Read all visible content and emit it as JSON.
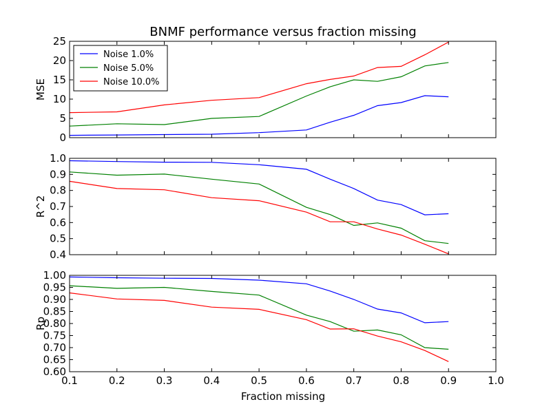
{
  "chart_data": {
    "type": "line",
    "title": "BNMF performance versus fraction missing",
    "xlabel": "Fraction missing",
    "xlim": [
      0.1,
      1.0
    ],
    "xticks": [
      "0.1",
      "0.2",
      "0.3",
      "0.4",
      "0.5",
      "0.6",
      "0.7",
      "0.8",
      "0.9",
      "1.0"
    ],
    "x": [
      0.1,
      0.2,
      0.3,
      0.4,
      0.5,
      0.6,
      0.65,
      0.7,
      0.75,
      0.8,
      0.85,
      0.9
    ],
    "legend": {
      "placement": "top-left",
      "subplot": 0
    },
    "series_colors": [
      "#0000ff",
      "#008000",
      "#ff0000"
    ],
    "series_names": [
      "Noise 1.0%",
      "Noise 5.0%",
      "Noise 10.0%"
    ],
    "subplots": [
      {
        "ylabel": "MSE",
        "ylim": [
          0,
          25
        ],
        "yticks": [
          "0",
          "5",
          "10",
          "15",
          "20",
          "25"
        ],
        "show_xtick_labels": false,
        "series": [
          {
            "name": "Noise 1.0%",
            "values": [
              0.6,
              0.7,
              0.8,
              0.9,
              1.3,
              2.0,
              4.0,
              5.8,
              8.3,
              9.1,
              10.9,
              10.6
            ]
          },
          {
            "name": "Noise 5.0%",
            "values": [
              3.0,
              3.6,
              3.4,
              5.0,
              5.5,
              10.8,
              13.2,
              15.0,
              14.6,
              15.8,
              18.6,
              19.5
            ]
          },
          {
            "name": "Noise 10.0%",
            "values": [
              6.5,
              6.7,
              8.5,
              9.7,
              10.4,
              14.0,
              15.1,
              16.0,
              18.2,
              18.5,
              21.5,
              24.8
            ]
          }
        ]
      },
      {
        "ylabel": "R^2",
        "ylim": [
          0.4,
          1.0
        ],
        "yticks": [
          "0.4",
          "0.5",
          "0.6",
          "0.7",
          "0.8",
          "0.9",
          "1.0"
        ],
        "show_xtick_labels": false,
        "series": [
          {
            "name": "Noise 1.0%",
            "values": [
              0.985,
              0.98,
              0.976,
              0.975,
              0.96,
              0.932,
              0.87,
              0.812,
              0.74,
              0.712,
              0.648,
              0.655
            ]
          },
          {
            "name": "Noise 5.0%",
            "values": [
              0.915,
              0.895,
              0.902,
              0.87,
              0.84,
              0.695,
              0.65,
              0.582,
              0.598,
              0.565,
              0.487,
              0.47
            ]
          },
          {
            "name": "Noise 10.0%",
            "values": [
              0.857,
              0.812,
              0.804,
              0.755,
              0.736,
              0.665,
              0.605,
              0.605,
              0.56,
              0.522,
              0.465,
              0.405
            ]
          }
        ]
      },
      {
        "ylabel": "Rp",
        "ylim": [
          0.6,
          1.0
        ],
        "yticks": [
          "0.60",
          "0.65",
          "0.70",
          "0.75",
          "0.80",
          "0.85",
          "0.90",
          "0.95",
          "1.00"
        ],
        "show_xtick_labels": true,
        "series": [
          {
            "name": "Noise 1.0%",
            "values": [
              0.993,
              0.99,
              0.988,
              0.987,
              0.98,
              0.965,
              0.935,
              0.9,
              0.86,
              0.844,
              0.803,
              0.808
            ]
          },
          {
            "name": "Noise 5.0%",
            "values": [
              0.957,
              0.946,
              0.95,
              0.933,
              0.918,
              0.835,
              0.808,
              0.768,
              0.773,
              0.753,
              0.7,
              0.693
            ]
          },
          {
            "name": "Noise 10.0%",
            "values": [
              0.927,
              0.902,
              0.896,
              0.868,
              0.859,
              0.816,
              0.777,
              0.778,
              0.748,
              0.724,
              0.688,
              0.642
            ]
          }
        ]
      }
    ]
  }
}
